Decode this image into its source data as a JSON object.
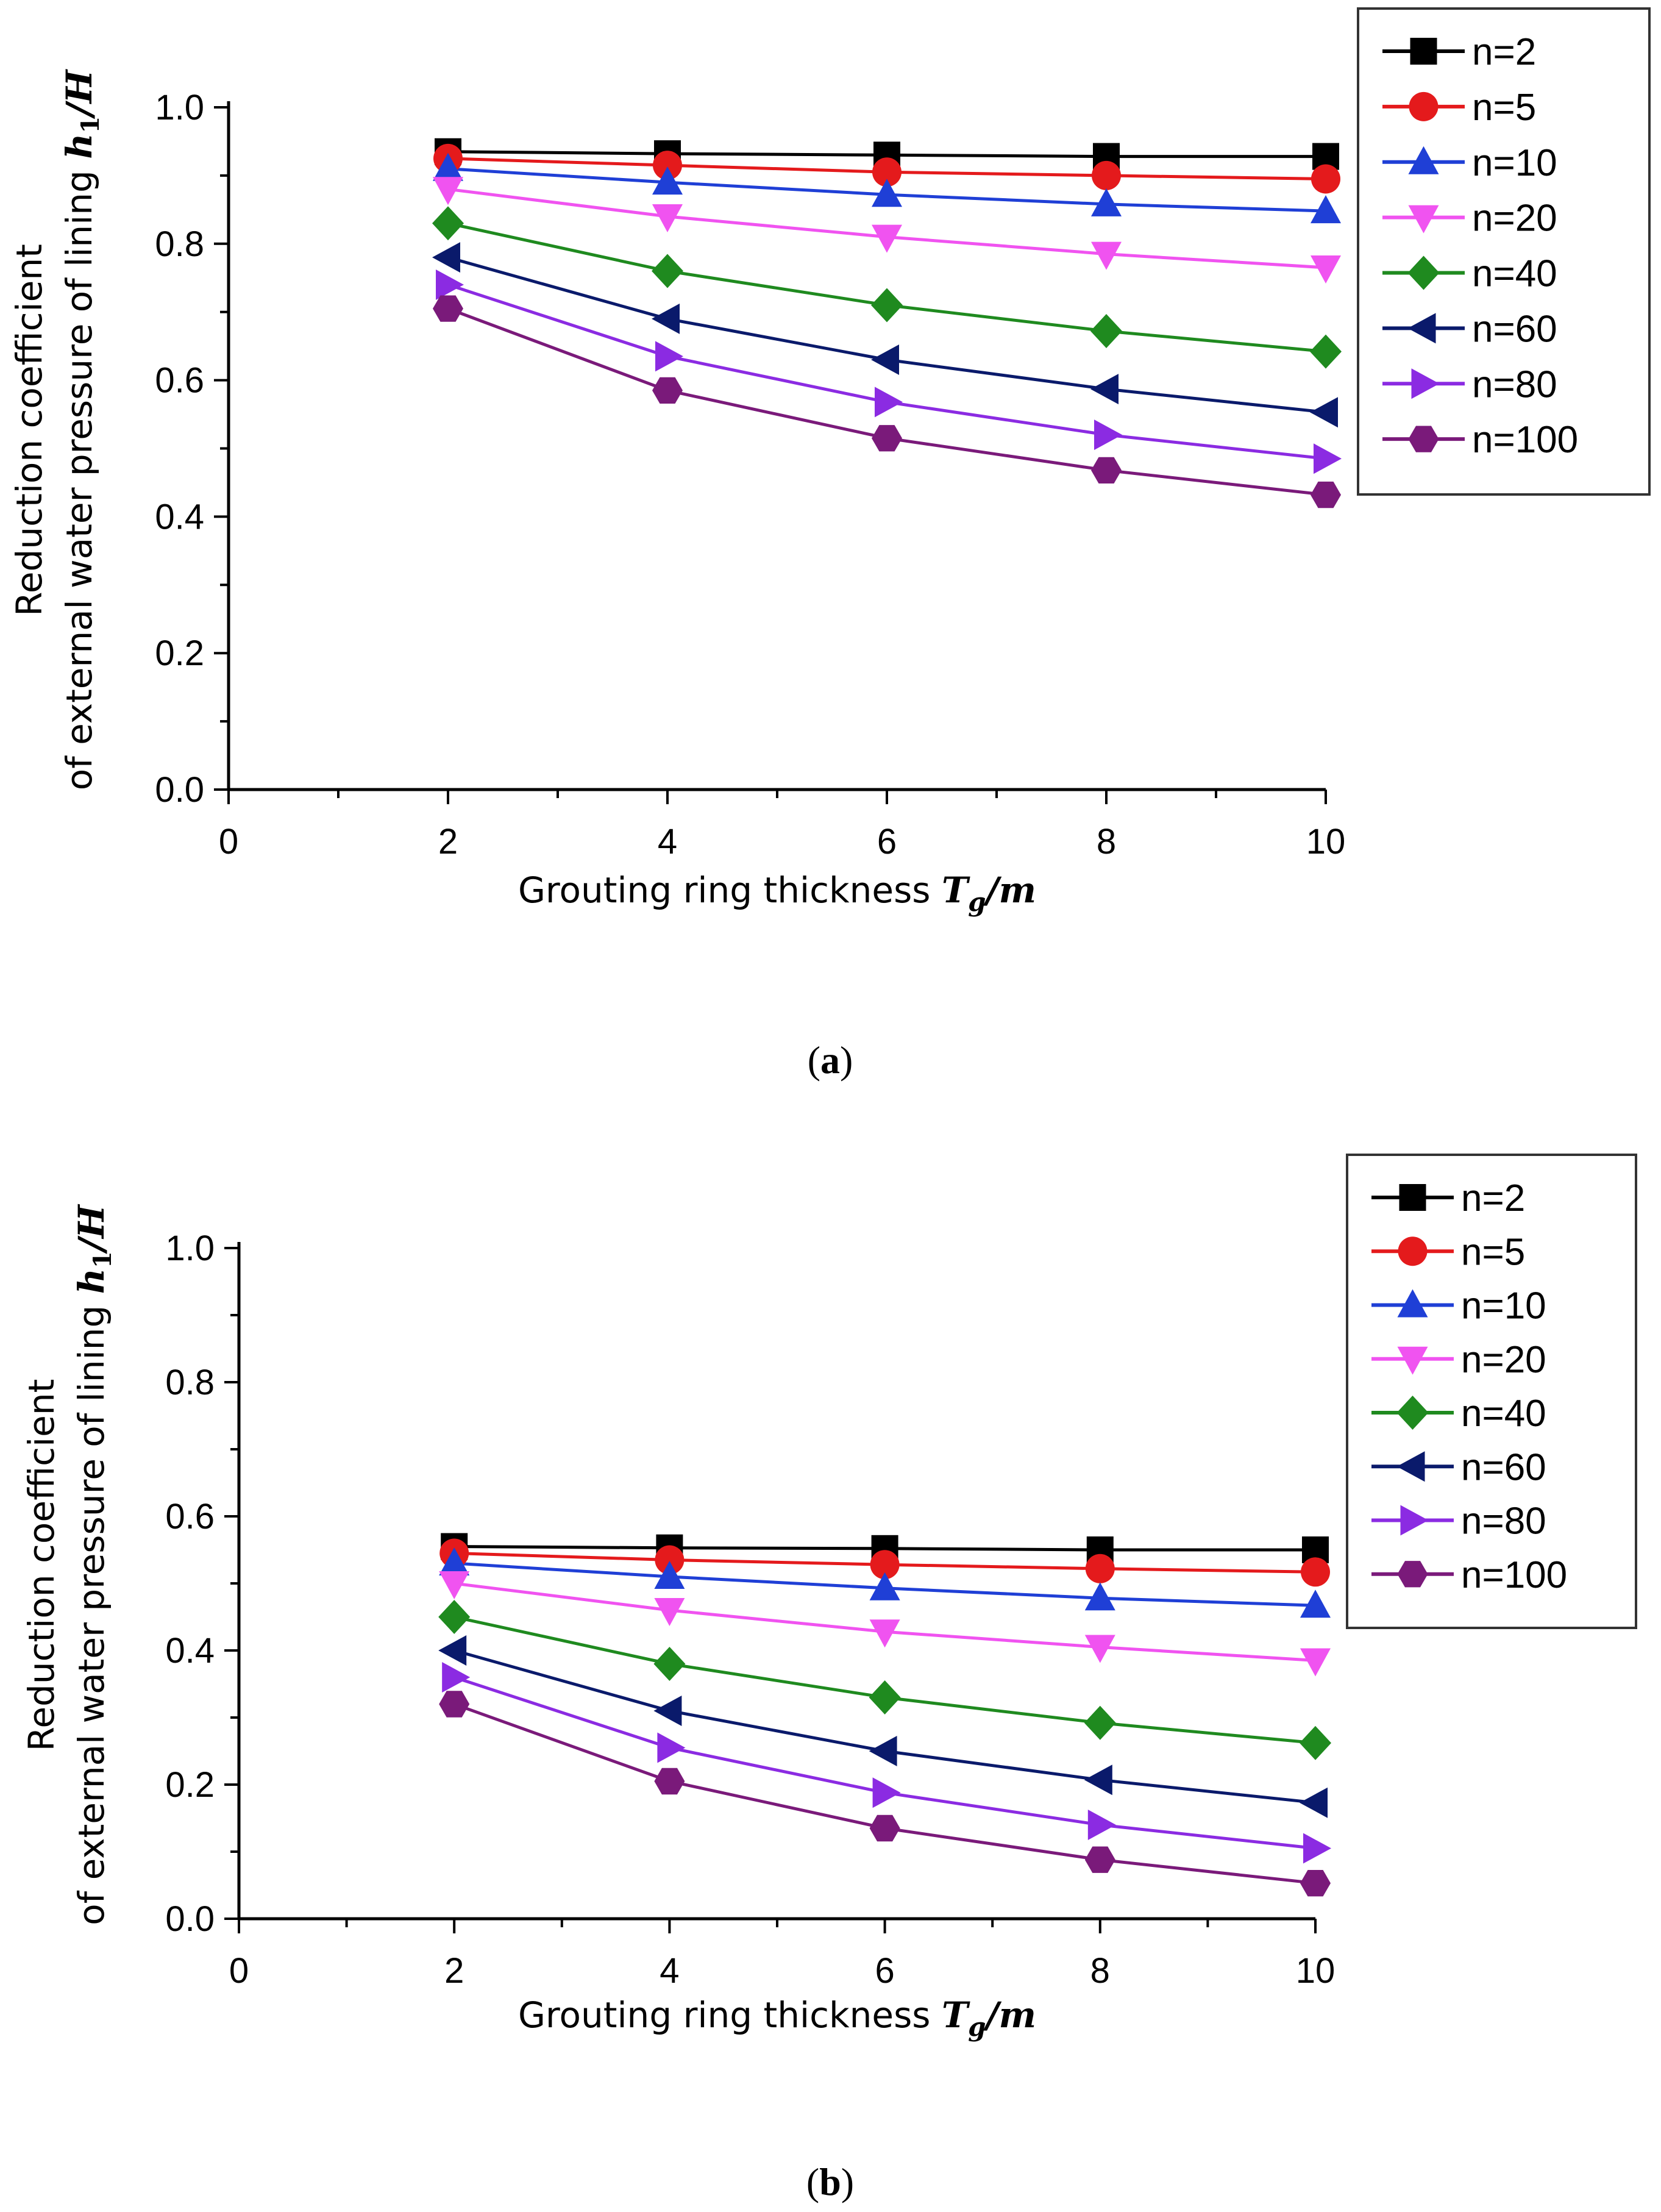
{
  "chart_data": [
    {
      "type": "line",
      "panel_label": "a",
      "xlabel": "Grouting ring thickness ",
      "xlabel_var": "T",
      "xlabel_sub": "g",
      "xlabel_unit": "/m",
      "ylabel_line1": "Reduction coefficient",
      "ylabel_line2": "of external water pressure of lining ",
      "ylabel_var": "h",
      "ylabel_sub": "1",
      "ylabel_unit": "/H",
      "xlim": [
        0,
        10
      ],
      "ylim": [
        0,
        1.0
      ],
      "x_ticks": [
        "0",
        "2",
        "4",
        "6",
        "8",
        "10"
      ],
      "y_ticks": [
        "0.0",
        "0.2",
        "0.4",
        "0.6",
        "0.8",
        "1.0"
      ],
      "x": [
        2,
        4,
        6,
        8,
        10
      ],
      "series": [
        {
          "name": "n=2",
          "color": "#000000",
          "marker": "square",
          "values": [
            0.935,
            0.932,
            0.93,
            0.928,
            0.928
          ]
        },
        {
          "name": "n=5",
          "color": "#e41a1c",
          "marker": "circle",
          "values": [
            0.925,
            0.915,
            0.905,
            0.9,
            0.895
          ]
        },
        {
          "name": "n=10",
          "color": "#1f3fd6",
          "marker": "triangle-up",
          "values": [
            0.91,
            0.89,
            0.872,
            0.858,
            0.848
          ]
        },
        {
          "name": "n=20",
          "color": "#f053f0",
          "marker": "triangle-down",
          "values": [
            0.88,
            0.84,
            0.81,
            0.785,
            0.765
          ]
        },
        {
          "name": "n=40",
          "color": "#1f8a1f",
          "marker": "diamond",
          "values": [
            0.83,
            0.76,
            0.71,
            0.672,
            0.642
          ]
        },
        {
          "name": "n=60",
          "color": "#0a1a6b",
          "marker": "triangle-left",
          "values": [
            0.78,
            0.69,
            0.63,
            0.587,
            0.553
          ]
        },
        {
          "name": "n=80",
          "color": "#8b2be2",
          "marker": "triangle-right",
          "values": [
            0.74,
            0.635,
            0.568,
            0.52,
            0.485
          ]
        },
        {
          "name": "n=100",
          "color": "#7a1a7a",
          "marker": "hexagon",
          "values": [
            0.705,
            0.585,
            0.515,
            0.468,
            0.432
          ]
        }
      ]
    },
    {
      "type": "line",
      "panel_label": "b",
      "xlabel": "Grouting ring thickness ",
      "xlabel_var": "T",
      "xlabel_sub": "g",
      "xlabel_unit": "/m",
      "ylabel_line1": "Reduction coefficient",
      "ylabel_line2": "of external water pressure of lining ",
      "ylabel_var": "h",
      "ylabel_sub": "1",
      "ylabel_unit": "/H",
      "xlim": [
        0,
        10
      ],
      "ylim": [
        0,
        1.0
      ],
      "x_ticks": [
        "0",
        "2",
        "4",
        "6",
        "8",
        "10"
      ],
      "y_ticks": [
        "0.0",
        "0.2",
        "0.4",
        "0.6",
        "0.8",
        "1.0"
      ],
      "x": [
        2,
        4,
        6,
        8,
        10
      ],
      "series": [
        {
          "name": "n=2",
          "color": "#000000",
          "marker": "square",
          "values": [
            0.555,
            0.553,
            0.552,
            0.55,
            0.55
          ]
        },
        {
          "name": "n=5",
          "color": "#e41a1c",
          "marker": "circle",
          "values": [
            0.545,
            0.535,
            0.528,
            0.522,
            0.517
          ]
        },
        {
          "name": "n=10",
          "color": "#1f3fd6",
          "marker": "triangle-up",
          "values": [
            0.53,
            0.51,
            0.493,
            0.478,
            0.467
          ]
        },
        {
          "name": "n=20",
          "color": "#f053f0",
          "marker": "triangle-down",
          "values": [
            0.5,
            0.46,
            0.428,
            0.405,
            0.385
          ]
        },
        {
          "name": "n=40",
          "color": "#1f8a1f",
          "marker": "diamond",
          "values": [
            0.45,
            0.38,
            0.33,
            0.292,
            0.262
          ]
        },
        {
          "name": "n=60",
          "color": "#0a1a6b",
          "marker": "triangle-left",
          "values": [
            0.4,
            0.31,
            0.25,
            0.207,
            0.173
          ]
        },
        {
          "name": "n=80",
          "color": "#8b2be2",
          "marker": "triangle-right",
          "values": [
            0.36,
            0.255,
            0.188,
            0.14,
            0.105
          ]
        },
        {
          "name": "n=100",
          "color": "#7a1a7a",
          "marker": "hexagon",
          "values": [
            0.32,
            0.205,
            0.135,
            0.088,
            0.053
          ]
        }
      ]
    }
  ]
}
